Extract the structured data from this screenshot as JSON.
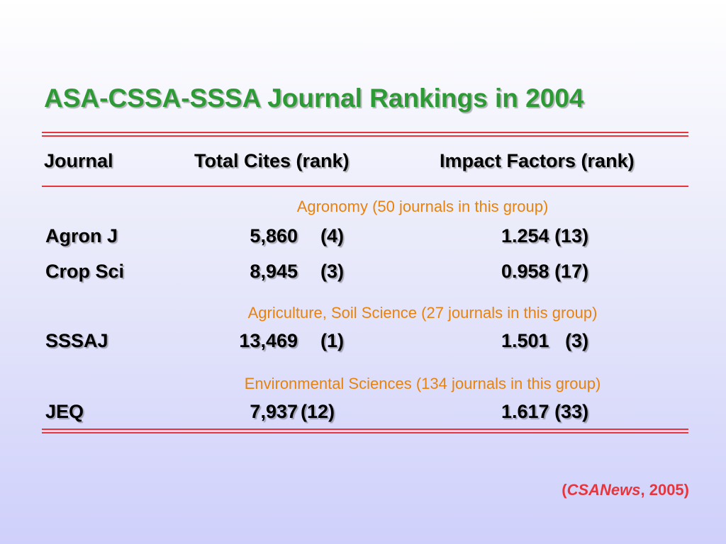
{
  "title": "ASA-CSSA-SSSA Journal Rankings in 2004",
  "columns": {
    "journal": "Journal",
    "total_cites": "Total Cites (rank)",
    "impact_factors": "Impact Factors (rank)"
  },
  "groups": [
    {
      "label": "Agronomy (50 journals in this group)",
      "rows": [
        {
          "journal": "Agron J",
          "cites": "5,860",
          "cites_rank": "(4)",
          "impact": "1.254 (13)"
        },
        {
          "journal": "Crop Sci",
          "cites": "8,945",
          "cites_rank": "(3)",
          "impact": "0.958 (17)"
        }
      ]
    },
    {
      "label": "Agriculture, Soil Science (27 journals in this group)",
      "rows": [
        {
          "journal": "SSSAJ",
          "cites": "13,469",
          "cites_rank": "(1)",
          "impact": "1.501   (3)"
        }
      ]
    },
    {
      "label": "Environmental Sciences (134 journals in this group)",
      "rows": [
        {
          "journal": "JEQ",
          "cites": "7,937",
          "cites_rank": "(12)",
          "impact": "1.617 (33)"
        }
      ]
    }
  ],
  "citation": {
    "open": "(",
    "source": "CSANews",
    "rest": ", 2005)"
  },
  "colors": {
    "title": "#2e9a36",
    "rule": "#e8353c",
    "group_label": "#e8820c",
    "citation": "#e8353c"
  }
}
